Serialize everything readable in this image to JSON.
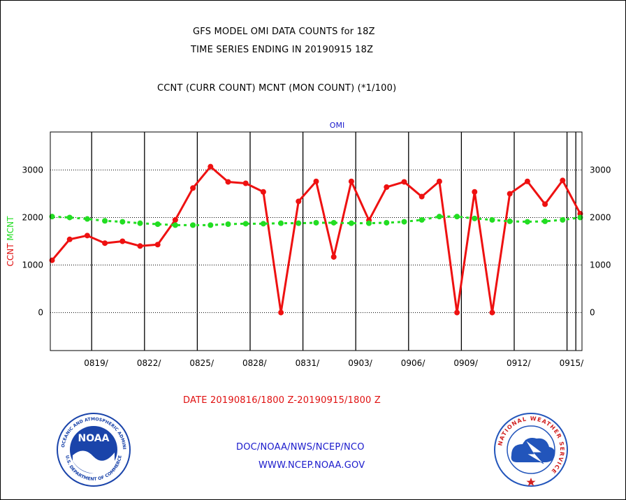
{
  "header": {
    "line1": "GFS MODEL OMI DATA COUNTS for 18Z",
    "line2": "TIME SERIES ENDING IN 20190915 18Z",
    "line3": "CCNT (CURR COUNT) MCNT (MON COUNT) (*1/100)"
  },
  "footer": {
    "date_range": "DATE 20190816/1800 Z-20190915/1800 Z",
    "org": "DOC/NOAA/NWS/NCEP/NCO",
    "url": "WWW.NCEP.NOAA.GOV",
    "noaa_badge": "NOAA",
    "noaa_ring_top": "NATIONAL OCEANIC AND ATMOSPHERIC ADMINISTRATION",
    "noaa_ring_bottom": "U.S. DEPARTMENT OF COMMERCE",
    "nws_ring": "NATIONAL WEATHER SERVICE"
  },
  "colors": {
    "ccnt": "#ee1111",
    "mcnt": "#22dd22",
    "title_blue": "#1a1acc",
    "label_red": "#e01010",
    "noaa_blue": "#1a44aa",
    "nws_blue": "#2255bb"
  },
  "chart_data": {
    "type": "line",
    "title": "OMI",
    "ylabel_ccnt": "CCNT",
    "ylabel_mcnt": "MCNT",
    "ylim": [
      -800,
      3800
    ],
    "yticks": [
      0,
      1000,
      2000,
      3000
    ],
    "xlim": [
      -0.1,
      30.1
    ],
    "x_tick_positions": [
      2.5,
      5.5,
      8.5,
      11.5,
      14.5,
      17.5,
      20.5,
      23.5,
      26.5,
      29.5
    ],
    "x_tick_labels": [
      "0819/",
      "0822/",
      "0825/",
      "0828/",
      "0831/",
      "0903/",
      "0906/",
      "0909/",
      "0912/",
      "0915/"
    ],
    "vlines": [
      2.25,
      5.25,
      8.25,
      11.25,
      14.25,
      17.25,
      20.25,
      23.25,
      26.25,
      29.25,
      29.75
    ],
    "series": [
      {
        "name": "CCNT",
        "x": [
          0,
          1,
          2,
          3,
          4,
          5,
          6,
          7,
          8,
          9,
          10,
          11,
          12,
          13,
          14,
          15,
          16,
          17,
          18,
          19,
          20,
          21,
          22,
          23,
          24,
          25,
          26,
          27,
          28,
          29,
          30
        ],
        "values": [
          1100,
          1540,
          1620,
          1460,
          1500,
          1400,
          1430,
          1950,
          2620,
          3070,
          2750,
          2720,
          2540,
          0,
          2340,
          2760,
          1170,
          2760,
          1940,
          2640,
          2750,
          2440,
          2760,
          0,
          2540,
          0,
          2500,
          2760,
          2280,
          2780,
          2080
        ]
      },
      {
        "name": "MCNT",
        "x": [
          0,
          1,
          2,
          3,
          4,
          5,
          6,
          7,
          8,
          9,
          10,
          11,
          12,
          13,
          14,
          15,
          16,
          17,
          18,
          19,
          20,
          21,
          22,
          23,
          24,
          25,
          26,
          27,
          28,
          29,
          30
        ],
        "values": [
          2020,
          2000,
          1970,
          1930,
          1910,
          1880,
          1860,
          1840,
          1840,
          1840,
          1860,
          1870,
          1870,
          1880,
          1880,
          1890,
          1890,
          1880,
          1880,
          1890,
          1910,
          1950,
          2020,
          2020,
          1980,
          1950,
          1920,
          1910,
          1920,
          1950,
          2000
        ]
      }
    ]
  }
}
